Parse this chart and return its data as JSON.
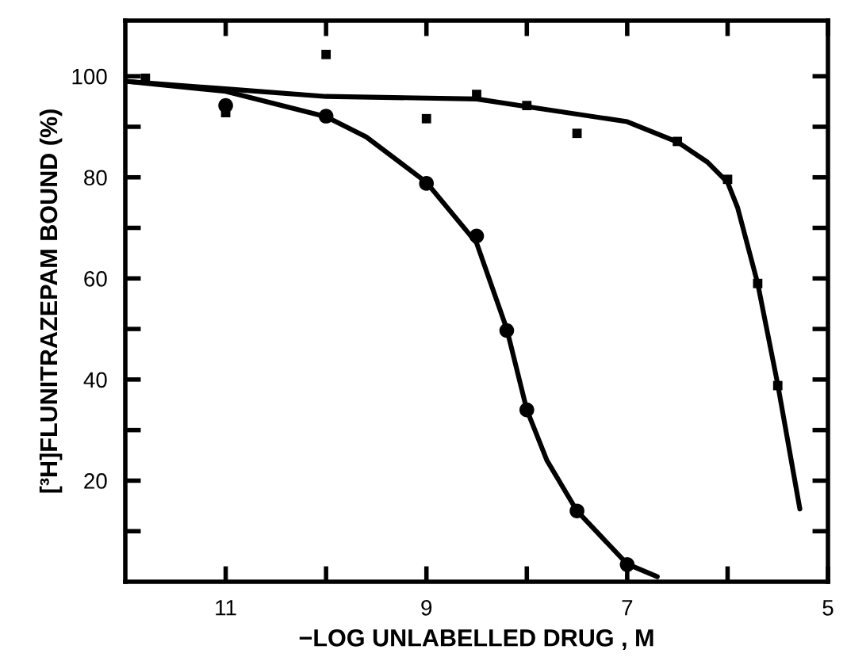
{
  "chart_data": {
    "type": "scatter",
    "xlabel": "−LOG UNLABELLED DRUG , M",
    "ylabel": "[³H]FLUNITRAZEPAM BOUND (%)",
    "series": [
      {
        "marker": "circle",
        "color": "#000000",
        "x": [
          11,
          10,
          9,
          8.5,
          8.2,
          8,
          7.5,
          7
        ],
        "values": [
          94.2,
          92.1,
          78.8,
          68.4,
          49.7,
          34,
          14,
          3.4
        ]
      },
      {
        "marker": "square",
        "color": "#000000",
        "x": [
          11.8,
          11,
          10,
          9,
          8.5,
          8,
          7.5,
          6.5,
          6,
          5.7,
          5.5
        ],
        "values": [
          99.6,
          92.8,
          104.3,
          91.6,
          96.4,
          94.2,
          88.7,
          87.1,
          79.6,
          59,
          38.8
        ]
      },
      {
        "type": "line",
        "marker": "none",
        "color": "#000000",
        "x": [
          12,
          11,
          10,
          9.6,
          9,
          8.5,
          8.2,
          8,
          7.8,
          7.5,
          7,
          6.7
        ],
        "values": [
          99,
          97,
          92,
          88,
          79,
          67,
          50,
          34,
          24,
          14,
          3.5,
          1
        ]
      },
      {
        "type": "line",
        "marker": "none",
        "color": "#000000",
        "x": [
          12,
          11,
          10,
          8.5,
          8,
          7,
          6.5,
          6.2,
          6,
          5.9,
          5.7,
          5.5,
          5.28
        ],
        "values": [
          99,
          97.5,
          96,
          95.5,
          94,
          91,
          87,
          83,
          79,
          74,
          59,
          39,
          14.4
        ]
      }
    ],
    "xlim": [
      12,
      5
    ],
    "ylim": [
      0,
      111
    ],
    "xticks": [
      11,
      {
        "value": 10,
        "label": null
      },
      9,
      {
        "value": 8,
        "label": null
      },
      7,
      {
        "value": 6,
        "label": null
      },
      5
    ],
    "yticks": [
      {
        "value": 10,
        "label": null
      },
      20,
      {
        "value": 30,
        "label": null
      },
      40,
      {
        "value": 50,
        "label": null
      },
      60,
      {
        "value": 70,
        "label": null
      },
      80,
      {
        "value": 90,
        "label": null
      },
      100
    ],
    "grid": false,
    "legend": false
  }
}
